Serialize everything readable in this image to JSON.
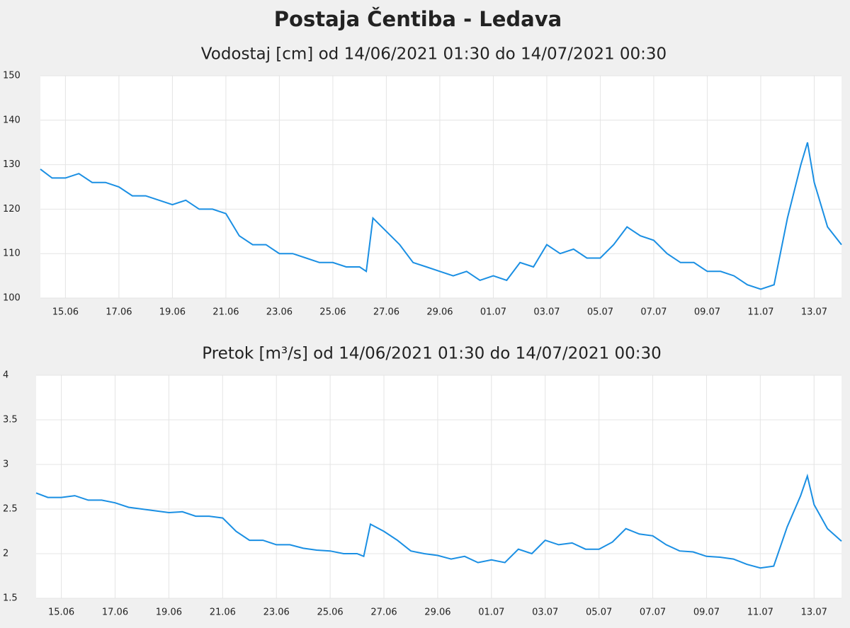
{
  "title": "Postaja Čentiba - Ledava",
  "chart_data": [
    {
      "type": "line",
      "title": "Vodostaj [cm] od 14/06/2021 01:30 do 14/07/2021 00:30",
      "x": [
        "2021-06-14T01:30",
        "2021-06-14T12:00",
        "2021-06-15T00:00",
        "2021-06-15T12:00",
        "2021-06-16T00:00",
        "2021-06-16T12:00",
        "2021-06-17T00:00",
        "2021-06-17T12:00",
        "2021-06-18T00:00",
        "2021-06-18T12:00",
        "2021-06-19T00:00",
        "2021-06-19T12:00",
        "2021-06-20T00:00",
        "2021-06-20T12:00",
        "2021-06-21T00:00",
        "2021-06-21T12:00",
        "2021-06-22T00:00",
        "2021-06-22T12:00",
        "2021-06-23T00:00",
        "2021-06-23T12:00",
        "2021-06-24T00:00",
        "2021-06-24T12:00",
        "2021-06-25T00:00",
        "2021-06-25T12:00",
        "2021-06-26T00:00",
        "2021-06-26T06:00",
        "2021-06-26T12:00",
        "2021-06-27T00:00",
        "2021-06-27T12:00",
        "2021-06-28T00:00",
        "2021-06-28T12:00",
        "2021-06-29T00:00",
        "2021-06-29T12:00",
        "2021-06-30T00:00",
        "2021-06-30T12:00",
        "2021-07-01T00:00",
        "2021-07-01T12:00",
        "2021-07-02T00:00",
        "2021-07-02T12:00",
        "2021-07-03T00:00",
        "2021-07-03T12:00",
        "2021-07-04T00:00",
        "2021-07-04T12:00",
        "2021-07-05T00:00",
        "2021-07-05T12:00",
        "2021-07-06T00:00",
        "2021-07-06T12:00",
        "2021-07-07T00:00",
        "2021-07-07T12:00",
        "2021-07-08T00:00",
        "2021-07-08T12:00",
        "2021-07-09T00:00",
        "2021-07-09T12:00",
        "2021-07-10T00:00",
        "2021-07-10T12:00",
        "2021-07-11T00:00",
        "2021-07-11T12:00",
        "2021-07-12T00:00",
        "2021-07-12T12:00",
        "2021-07-12T18:00",
        "2021-07-13T00:00",
        "2021-07-13T12:00",
        "2021-07-14T00:30"
      ],
      "series": [
        {
          "color": "#1a8fe3",
          "values": [
            129,
            127,
            127,
            128,
            126,
            126,
            125,
            123,
            123,
            122,
            121,
            122,
            120,
            120,
            119,
            114,
            112,
            112,
            110,
            110,
            109,
            108,
            108,
            107,
            107,
            106,
            118,
            115,
            112,
            108,
            107,
            106,
            105,
            106,
            104,
            105,
            104,
            108,
            107,
            112,
            110,
            111,
            109,
            109,
            112,
            116,
            114,
            113,
            110,
            108,
            108,
            106,
            106,
            105,
            103,
            102,
            103,
            118,
            130,
            135,
            126,
            116,
            112
          ]
        }
      ],
      "xlim": [
        "2021-06-14T01:30",
        "2021-07-14T00:30"
      ],
      "xticks": [
        {
          "value": "2021-06-15T00:00",
          "label": "15.06"
        },
        {
          "value": "2021-06-17T00:00",
          "label": "17.06"
        },
        {
          "value": "2021-06-19T00:00",
          "label": "19.06"
        },
        {
          "value": "2021-06-21T00:00",
          "label": "21.06"
        },
        {
          "value": "2021-06-23T00:00",
          "label": "23.06"
        },
        {
          "value": "2021-06-25T00:00",
          "label": "25.06"
        },
        {
          "value": "2021-06-27T00:00",
          "label": "27.06"
        },
        {
          "value": "2021-06-29T00:00",
          "label": "29.06"
        },
        {
          "value": "2021-07-01T00:00",
          "label": "01.07"
        },
        {
          "value": "2021-07-03T00:00",
          "label": "03.07"
        },
        {
          "value": "2021-07-05T00:00",
          "label": "05.07"
        },
        {
          "value": "2021-07-07T00:00",
          "label": "07.07"
        },
        {
          "value": "2021-07-09T00:00",
          "label": "09.07"
        },
        {
          "value": "2021-07-11T00:00",
          "label": "11.07"
        },
        {
          "value": "2021-07-13T00:00",
          "label": "13.07"
        }
      ],
      "ylim": [
        100,
        150
      ],
      "yticks": [
        100,
        110,
        120,
        130,
        140,
        150
      ],
      "grid": true
    },
    {
      "type": "line",
      "title": "Pretok [m³/s] od 14/06/2021 01:30 do 14/07/2021 00:30",
      "x": [
        "2021-06-14T01:30",
        "2021-06-14T12:00",
        "2021-06-15T00:00",
        "2021-06-15T12:00",
        "2021-06-16T00:00",
        "2021-06-16T12:00",
        "2021-06-17T00:00",
        "2021-06-17T12:00",
        "2021-06-18T00:00",
        "2021-06-18T12:00",
        "2021-06-19T00:00",
        "2021-06-19T12:00",
        "2021-06-20T00:00",
        "2021-06-20T12:00",
        "2021-06-21T00:00",
        "2021-06-21T12:00",
        "2021-06-22T00:00",
        "2021-06-22T12:00",
        "2021-06-23T00:00",
        "2021-06-23T12:00",
        "2021-06-24T00:00",
        "2021-06-24T12:00",
        "2021-06-25T00:00",
        "2021-06-25T12:00",
        "2021-06-26T00:00",
        "2021-06-26T06:00",
        "2021-06-26T12:00",
        "2021-06-27T00:00",
        "2021-06-27T12:00",
        "2021-06-28T00:00",
        "2021-06-28T12:00",
        "2021-06-29T00:00",
        "2021-06-29T12:00",
        "2021-06-30T00:00",
        "2021-06-30T12:00",
        "2021-07-01T00:00",
        "2021-07-01T12:00",
        "2021-07-02T00:00",
        "2021-07-02T12:00",
        "2021-07-03T00:00",
        "2021-07-03T12:00",
        "2021-07-04T00:00",
        "2021-07-04T12:00",
        "2021-07-05T00:00",
        "2021-07-05T12:00",
        "2021-07-06T00:00",
        "2021-07-06T12:00",
        "2021-07-07T00:00",
        "2021-07-07T12:00",
        "2021-07-08T00:00",
        "2021-07-08T12:00",
        "2021-07-09T00:00",
        "2021-07-09T12:00",
        "2021-07-10T00:00",
        "2021-07-10T12:00",
        "2021-07-11T00:00",
        "2021-07-11T12:00",
        "2021-07-12T00:00",
        "2021-07-12T12:00",
        "2021-07-12T18:00",
        "2021-07-13T00:00",
        "2021-07-13T12:00",
        "2021-07-14T00:30"
      ],
      "series": [
        {
          "color": "#1a8fe3",
          "values": [
            2.68,
            2.63,
            2.63,
            2.65,
            2.6,
            2.6,
            2.57,
            2.52,
            2.5,
            2.48,
            2.46,
            2.47,
            2.42,
            2.42,
            2.4,
            2.25,
            2.15,
            2.15,
            2.1,
            2.1,
            2.06,
            2.04,
            2.03,
            2.0,
            2.0,
            1.97,
            2.33,
            2.25,
            2.15,
            2.03,
            2.0,
            1.98,
            1.94,
            1.97,
            1.9,
            1.93,
            1.9,
            2.05,
            2.0,
            2.15,
            2.1,
            2.12,
            2.05,
            2.05,
            2.13,
            2.28,
            2.22,
            2.2,
            2.1,
            2.03,
            2.02,
            1.97,
            1.96,
            1.94,
            1.88,
            1.84,
            1.86,
            2.3,
            2.65,
            2.87,
            2.55,
            2.28,
            2.14
          ]
        }
      ],
      "xlim": [
        "2021-06-14T01:30",
        "2021-07-14T00:30"
      ],
      "xticks": [
        {
          "value": "2021-06-15T00:00",
          "label": "15.06"
        },
        {
          "value": "2021-06-17T00:00",
          "label": "17.06"
        },
        {
          "value": "2021-06-19T00:00",
          "label": "19.06"
        },
        {
          "value": "2021-06-21T00:00",
          "label": "21.06"
        },
        {
          "value": "2021-06-23T00:00",
          "label": "23.06"
        },
        {
          "value": "2021-06-25T00:00",
          "label": "25.06"
        },
        {
          "value": "2021-06-27T00:00",
          "label": "27.06"
        },
        {
          "value": "2021-06-29T00:00",
          "label": "29.06"
        },
        {
          "value": "2021-07-01T00:00",
          "label": "01.07"
        },
        {
          "value": "2021-07-03T00:00",
          "label": "03.07"
        },
        {
          "value": "2021-07-05T00:00",
          "label": "05.07"
        },
        {
          "value": "2021-07-07T00:00",
          "label": "07.07"
        },
        {
          "value": "2021-07-09T00:00",
          "label": "09.07"
        },
        {
          "value": "2021-07-11T00:00",
          "label": "11.07"
        },
        {
          "value": "2021-07-13T00:00",
          "label": "13.07"
        }
      ],
      "ylim": [
        1.5,
        4
      ],
      "yticks": [
        1.5,
        2,
        2.5,
        3,
        3.5,
        4
      ],
      "grid": true
    }
  ]
}
